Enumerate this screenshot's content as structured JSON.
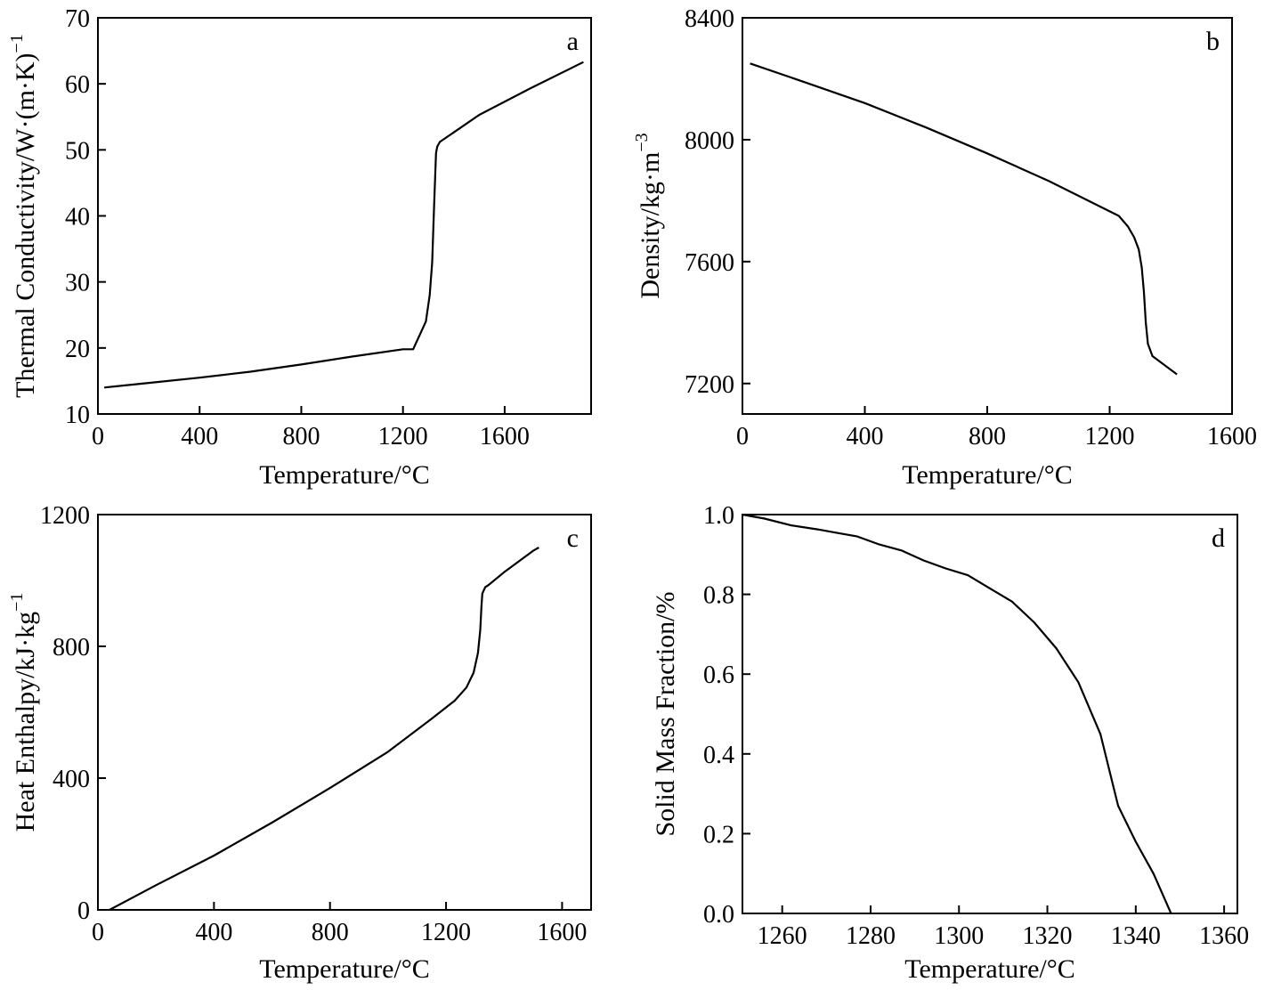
{
  "chart_data": [
    {
      "type": "line",
      "panel_label": "a",
      "xlabel": "Temperature/°C",
      "ylabel": "Thermal Conductivity/W·(m·K)",
      "ylabel_sup": "−1",
      "xlim": [
        0,
        1940
      ],
      "ylim": [
        10,
        70
      ],
      "xticks": [
        0,
        400,
        800,
        1200,
        1600
      ],
      "yticks": [
        10,
        20,
        30,
        40,
        50,
        60,
        70
      ],
      "series": [
        {
          "x": [
            25,
            200,
            400,
            600,
            800,
            1000,
            1200,
            1240,
            1290,
            1305,
            1315,
            1322,
            1330,
            1335,
            1345,
            1500,
            1700,
            1910
          ],
          "y": [
            14,
            14.7,
            15.5,
            16.4,
            17.5,
            18.7,
            19.8,
            19.8,
            24,
            28,
            33,
            41,
            49.5,
            50.5,
            51.2,
            55.3,
            59.3,
            63.3
          ]
        }
      ]
    },
    {
      "type": "line",
      "panel_label": "b",
      "xlabel": "Temperature/°C",
      "ylabel": "Density/kg·m",
      "ylabel_sup": "−3",
      "xlim": [
        0,
        1600
      ],
      "ylim": [
        7100,
        8400
      ],
      "xticks": [
        0,
        400,
        800,
        1200,
        1600
      ],
      "yticks": [
        7200,
        7600,
        8000,
        8400
      ],
      "series": [
        {
          "x": [
            25,
            200,
            400,
            600,
            800,
            1000,
            1200,
            1230,
            1260,
            1280,
            1295,
            1305,
            1312,
            1318,
            1325,
            1340,
            1420
          ],
          "y": [
            8250,
            8190,
            8120,
            8040,
            7955,
            7865,
            7765,
            7750,
            7715,
            7680,
            7640,
            7580,
            7500,
            7400,
            7330,
            7290,
            7230
          ]
        }
      ]
    },
    {
      "type": "line",
      "panel_label": "c",
      "xlabel": "Temperature/°C",
      "ylabel": "Heat Enthalpy/kJ·kg",
      "ylabel_sup": "−1",
      "xlim": [
        0,
        1700
      ],
      "ylim": [
        0,
        1200
      ],
      "xticks": [
        0,
        400,
        800,
        1200,
        1600
      ],
      "yticks": [
        0,
        400,
        800,
        1200
      ],
      "series": [
        {
          "x": [
            40,
            200,
            400,
            600,
            800,
            1000,
            1150,
            1230,
            1270,
            1295,
            1310,
            1318,
            1322,
            1325,
            1335,
            1345,
            1400,
            1500,
            1520
          ],
          "y": [
            0,
            75,
            165,
            265,
            370,
            480,
            580,
            635,
            675,
            720,
            780,
            850,
            920,
            960,
            980,
            985,
            1025,
            1090,
            1100
          ]
        }
      ]
    },
    {
      "type": "line",
      "panel_label": "d",
      "xlabel": "Temperature/°C",
      "ylabel": "Solid Mass Fraction/%",
      "ylabel_sup": "",
      "xlim": [
        1251,
        1363
      ],
      "ylim": [
        0.0,
        1.0
      ],
      "xticks": [
        1260,
        1280,
        1300,
        1320,
        1340,
        1360
      ],
      "ytick_labels": [
        "0.0",
        "0.2",
        "0.4",
        "0.6",
        "0.8",
        "1.0"
      ],
      "yticks": [
        0.0,
        0.2,
        0.4,
        0.6,
        0.8,
        1.0
      ],
      "series": [
        {
          "x": [
            1251,
            1256,
            1262,
            1268,
            1272,
            1277,
            1282,
            1287,
            1292,
            1297,
            1302,
            1307,
            1312,
            1317,
            1322,
            1327,
            1332,
            1336,
            1340,
            1344,
            1346,
            1348
          ],
          "y": [
            1.0,
            0.99,
            0.973,
            0.963,
            0.955,
            0.945,
            0.925,
            0.91,
            0.885,
            0.865,
            0.848,
            0.815,
            0.782,
            0.73,
            0.665,
            0.58,
            0.45,
            0.27,
            0.18,
            0.1,
            0.05,
            0.0
          ]
        }
      ]
    }
  ]
}
